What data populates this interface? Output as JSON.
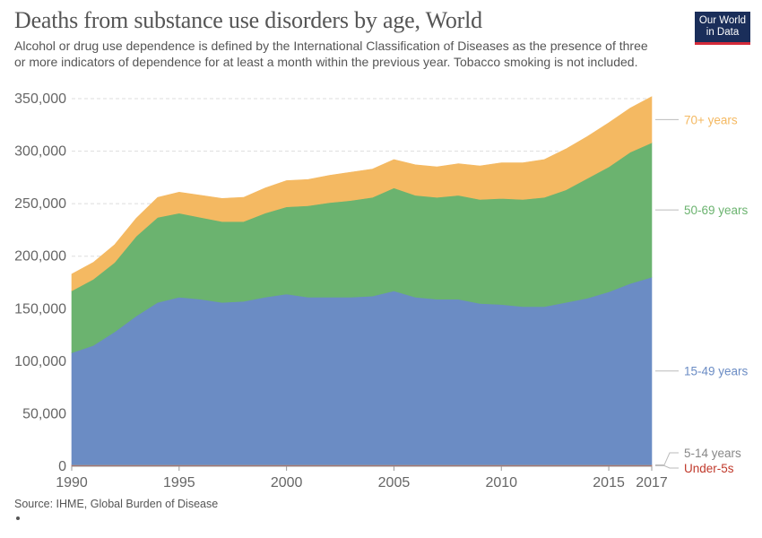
{
  "header": {
    "title": "Deaths from substance use disorders by age, World",
    "subtitle": "Alcohol or drug use dependence is defined by the International Classification of Diseases as the presence of three or more indicators of dependence for at least a month within the previous year. Tobacco smoking is not included.",
    "logo": "Our World in Data"
  },
  "footer": {
    "source": "Source: IHME, Global Burden of Disease"
  },
  "chart_data": {
    "type": "area",
    "stacked": true,
    "x": [
      1990,
      1991,
      1992,
      1993,
      1994,
      1995,
      1996,
      1997,
      1998,
      1999,
      2000,
      2001,
      2002,
      2003,
      2004,
      2005,
      2006,
      2007,
      2008,
      2009,
      2010,
      2011,
      2012,
      2013,
      2014,
      2015,
      2016,
      2017
    ],
    "xticks": [
      "1990",
      "1995",
      "2000",
      "2005",
      "2010",
      "2015",
      "2017"
    ],
    "yticks": [
      "0",
      "50,000",
      "100,000",
      "150,000",
      "200,000",
      "250,000",
      "300,000",
      "350,000"
    ],
    "ylim": [
      0,
      350000
    ],
    "grid": "horizontal dashed",
    "legend_placement": "right, labels at series ends",
    "series": [
      {
        "name": "Under-5s",
        "color": "#c0392b",
        "values": [
          1000,
          1000,
          1000,
          1000,
          1000,
          1000,
          1000,
          1000,
          1000,
          1000,
          1000,
          1000,
          1000,
          1000,
          1000,
          1000,
          1000,
          1000,
          1000,
          1000,
          1000,
          1000,
          1000,
          1000,
          1000,
          1000,
          1000,
          1000
        ]
      },
      {
        "name": "5-14 years",
        "color": "#999999",
        "values": [
          500,
          500,
          500,
          500,
          500,
          500,
          500,
          500,
          500,
          500,
          500,
          500,
          500,
          500,
          500,
          500,
          500,
          500,
          500,
          500,
          500,
          500,
          500,
          500,
          500,
          500,
          500,
          500
        ]
      },
      {
        "name": "15-49 years",
        "color": "#6b8cc4",
        "values": [
          106500,
          113500,
          126500,
          141500,
          154500,
          159500,
          157500,
          154500,
          155500,
          159500,
          162500,
          159500,
          159500,
          159500,
          160500,
          165500,
          159500,
          157500,
          157500,
          153500,
          152500,
          150500,
          150500,
          154500,
          158500,
          164500,
          172500,
          178500
        ]
      },
      {
        "name": "50-69 years",
        "color": "#6bb36f",
        "values": [
          59000,
          63000,
          66000,
          76000,
          81000,
          80000,
          78000,
          77000,
          76000,
          80000,
          83000,
          87000,
          90000,
          92000,
          94000,
          98000,
          97000,
          97000,
          99000,
          99000,
          101000,
          102000,
          104000,
          107000,
          114000,
          119000,
          125000,
          128000
        ]
      },
      {
        "name": "70+ years",
        "color": "#f4b962",
        "values": [
          16000,
          16000,
          17000,
          17000,
          19000,
          20000,
          21000,
          22000,
          23000,
          24000,
          25000,
          25000,
          26000,
          27000,
          27000,
          27000,
          29000,
          29000,
          30000,
          32000,
          34000,
          35000,
          36000,
          39000,
          40000,
          42000,
          42000,
          44000
        ]
      }
    ]
  }
}
